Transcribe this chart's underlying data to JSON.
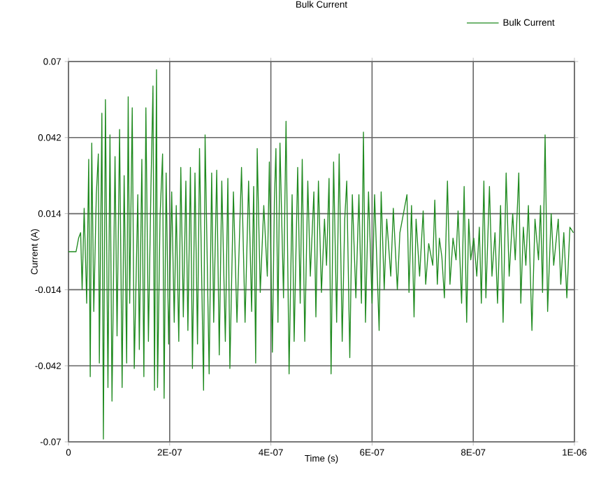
{
  "chart_data": {
    "type": "line",
    "title": "Bulk Current",
    "xlabel": "Time (s)",
    "ylabel": "Current (A)",
    "xlim": [
      0,
      1e-06
    ],
    "ylim": [
      -0.07,
      0.07
    ],
    "xticks": [
      0,
      {
        "value": 2e-07,
        "label": "2E-07"
      },
      {
        "value": 4e-07,
        "label": "4E-07"
      },
      {
        "value": 6e-07,
        "label": "6E-07"
      },
      {
        "value": 8e-07,
        "label": "8E-07"
      },
      {
        "value": 1e-06,
        "label": "1E-06"
      }
    ],
    "yticks": [
      -0.07,
      -0.042,
      -0.014,
      0.014,
      0.042,
      0.07
    ],
    "grid": true,
    "legend": "top right",
    "marker": "none",
    "line_style": "solid",
    "series": [
      {
        "name": "Bulk Current",
        "color": "#1f8a1f",
        "x": [
          0,
          1.5e-08,
          2e-08,
          2.4e-08,
          2.7e-08,
          3.1e-08,
          3.6e-08,
          4e-08,
          4.3e-08,
          4.6e-08,
          5e-08,
          5.5e-08,
          5.9e-08,
          6.1e-08,
          6.6e-08,
          6.9e-08,
          7.3e-08,
          7.8e-08,
          8.2e-08,
          8.6e-08,
          9.2e-08,
          9.6e-08,
          1.01e-07,
          1.06e-07,
          1.1e-07,
          1.15e-07,
          1.18e-07,
          1.21e-07,
          1.26e-07,
          1.3e-07,
          1.37e-07,
          1.4e-07,
          1.45e-07,
          1.49e-07,
          1.53e-07,
          1.58e-07,
          1.63e-07,
          1.67e-07,
          1.7e-07,
          1.74e-07,
          1.76e-07,
          1.81e-07,
          1.86e-07,
          1.89e-07,
          1.93e-07,
          1.98e-07,
          2.04e-07,
          2.09e-07,
          2.13e-07,
          2.18e-07,
          2.22e-07,
          2.27e-07,
          2.32e-07,
          2.36e-07,
          2.41e-07,
          2.45e-07,
          2.5e-07,
          2.55e-07,
          2.59e-07,
          2.67e-07,
          2.7e-07,
          2.78e-07,
          2.83e-07,
          2.87e-07,
          2.93e-07,
          2.98e-07,
          3.03e-07,
          3.1e-07,
          3.15e-07,
          3.19e-07,
          3.26e-07,
          3.33e-07,
          3.42e-07,
          3.49e-07,
          3.56e-07,
          3.62e-07,
          3.66e-07,
          3.7e-07,
          3.73e-07,
          3.79e-07,
          3.86e-07,
          3.93e-07,
          3.97e-07,
          4.03e-07,
          4.07e-07,
          4.1e-07,
          4.14e-07,
          4.18e-07,
          4.25e-07,
          4.3e-07,
          4.36e-07,
          4.42e-07,
          4.46e-07,
          4.53e-07,
          4.58e-07,
          4.62e-07,
          4.67e-07,
          4.73e-07,
          4.78e-07,
          4.85e-07,
          4.89e-07,
          4.94e-07,
          5e-07,
          5.06e-07,
          5.1e-07,
          5.15e-07,
          5.19e-07,
          5.24e-07,
          5.3e-07,
          5.35e-07,
          5.41e-07,
          5.46e-07,
          5.5e-07,
          5.56e-07,
          5.61e-07,
          5.68e-07,
          5.74e-07,
          5.79e-07,
          5.83e-07,
          5.87e-07,
          5.93e-07,
          6e-07,
          6.05e-07,
          6.14e-07,
          6.18e-07,
          6.24e-07,
          6.29e-07,
          6.37e-07,
          6.42e-07,
          6.5e-07,
          6.55e-07,
          6.69e-07,
          6.73e-07,
          6.78e-07,
          6.83e-07,
          6.87e-07,
          6.94e-07,
          7.01e-07,
          7.06e-07,
          7.12e-07,
          7.2e-07,
          7.24e-07,
          7.29e-07,
          7.33e-07,
          7.38e-07,
          7.43e-07,
          7.49e-07,
          7.54e-07,
          7.6e-07,
          7.66e-07,
          7.7e-07,
          7.77e-07,
          7.82e-07,
          7.87e-07,
          7.91e-07,
          7.95e-07,
          8.01e-07,
          8.07e-07,
          8.12e-07,
          8.16e-07,
          8.21e-07,
          8.25e-07,
          8.32e-07,
          8.37e-07,
          8.43e-07,
          8.48e-07,
          8.54e-07,
          8.59e-07,
          8.65e-07,
          8.71e-07,
          8.78e-07,
          8.83e-07,
          8.9e-07,
          8.94e-07,
          8.99e-07,
          9.04e-07,
          9.09e-07,
          9.16e-07,
          9.22e-07,
          9.29e-07,
          9.33e-07,
          9.37e-07,
          9.42e-07,
          9.47e-07,
          9.54e-07,
          9.59e-07,
          9.68e-07,
          9.73e-07,
          9.79e-07,
          9.85e-07,
          9.91e-07,
          9.98e-07
        ],
        "values": [
          0,
          0,
          0.005,
          0.007,
          -0.014,
          0.016,
          -0.019,
          0.034,
          -0.046,
          0.04,
          -0.022,
          0.021,
          0.036,
          -0.041,
          0.051,
          -0.069,
          0.056,
          -0.05,
          0.043,
          -0.055,
          0.035,
          -0.031,
          0.045,
          -0.05,
          0.028,
          -0.041,
          0.057,
          -0.019,
          0.053,
          -0.043,
          0.021,
          -0.036,
          0.034,
          -0.046,
          0.053,
          -0.033,
          0.024,
          0.061,
          -0.051,
          0.067,
          -0.05,
          0.013,
          0.036,
          -0.054,
          0.029,
          -0.034,
          0.022,
          -0.026,
          0.017,
          -0.033,
          0.031,
          -0.024,
          0.026,
          -0.029,
          0.031,
          -0.043,
          0.029,
          -0.034,
          0.038,
          -0.051,
          0.043,
          -0.045,
          0.029,
          -0.026,
          0.03,
          -0.038,
          0.026,
          -0.033,
          0.027,
          -0.043,
          0.022,
          -0.026,
          0.031,
          -0.026,
          0.026,
          -0.022,
          0.024,
          -0.041,
          0.038,
          -0.015,
          0.017,
          -0.009,
          0.033,
          -0.037,
          0.019,
          0.038,
          -0.026,
          0.04,
          -0.017,
          0.048,
          -0.045,
          0.021,
          -0.033,
          0.031,
          -0.019,
          0.034,
          -0.033,
          0.026,
          -0.009,
          0.022,
          -0.024,
          0.026,
          -0.015,
          0.012,
          -0.005,
          0.027,
          -0.045,
          0.033,
          -0.026,
          0.036,
          -0.033,
          0.012,
          0.026,
          -0.039,
          0.021,
          -0.017,
          0.021,
          -0.019,
          0.044,
          -0.026,
          0.022,
          -0.019,
          0.021,
          -0.029,
          0.022,
          -0.014,
          0.012,
          -0.009,
          0.016,
          -0.014,
          0.007,
          0.021,
          -0.015,
          0.017,
          -0.024,
          0.012,
          -0.009,
          0.015,
          -0.012,
          0.003,
          -0.005,
          0.019,
          -0.012,
          0.005,
          -0.002,
          -0.017,
          0.026,
          -0.012,
          0.005,
          -0.003,
          0.015,
          -0.019,
          0.024,
          -0.026,
          0.012,
          -0.003,
          0.005,
          -0.009,
          0.009,
          -0.019,
          0.026,
          -0.017,
          0.024,
          -0.009,
          0.007,
          -0.019,
          0.017,
          -0.026,
          0.029,
          -0.009,
          0.014,
          -0.003,
          0.029,
          -0.019,
          0.009,
          -0.005,
          0.017,
          -0.029,
          0.012,
          -0.003,
          0.017,
          -0.015,
          0.043,
          -0.022,
          0.014,
          -0.005,
          0.012,
          -0.012,
          0.007,
          -0.017,
          0.009,
          0.007
        ]
      }
    ]
  }
}
